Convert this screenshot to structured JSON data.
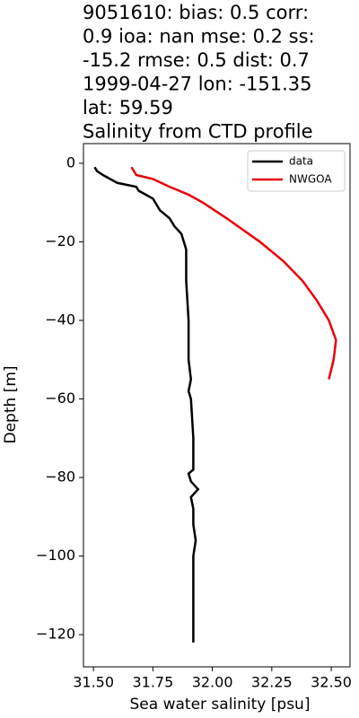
{
  "chart_data": {
    "type": "line",
    "title": [
      "9051610: bias: 0.5  corr:",
      "0.9  ioa: nan  mse: 0.2  ss:",
      "-15.2  rmse: 0.5  dist: 0.7",
      "1999-04-27 lon: -151.35",
      "lat: 59.59",
      "Salinity from CTD profile"
    ],
    "xlabel": "Sea water salinity [psu]",
    "ylabel": "Depth [m]",
    "xlim": [
      31.458,
      32.579
    ],
    "ylim": [
      -128.2,
      5
    ],
    "xticks": [
      {
        "value": 31.5,
        "label": "31.50"
      },
      {
        "value": 31.75,
        "label": "31.75"
      },
      {
        "value": 32.0,
        "label": "32.00"
      },
      {
        "value": 32.25,
        "label": "32.25"
      },
      {
        "value": 32.5,
        "label": "32.50"
      }
    ],
    "yticks": [
      0,
      {
        "value": -20,
        "label": "−20"
      },
      {
        "value": -40,
        "label": "−40"
      },
      {
        "value": -60,
        "label": "−60"
      },
      {
        "value": -80,
        "label": "−80"
      },
      {
        "value": -100,
        "label": "−100"
      },
      {
        "value": -120,
        "label": "−120"
      }
    ],
    "legend": "upper right",
    "series": [
      {
        "name": "data",
        "color": "#000000",
        "x": [
          31.505,
          31.515,
          31.54,
          31.6,
          31.68,
          31.69,
          31.72,
          31.75,
          31.76,
          31.78,
          31.82,
          31.84,
          31.87,
          31.88,
          31.89,
          31.89,
          31.89,
          31.9,
          31.9,
          31.91,
          31.9,
          31.91,
          31.92,
          31.92,
          31.9,
          31.91,
          31.94,
          31.91,
          31.92,
          31.92,
          31.93,
          31.92,
          31.92,
          31.92
        ],
        "values": [
          -1,
          -2,
          -3,
          -5,
          -6,
          -7,
          -8,
          -9,
          -10,
          -12,
          -14,
          -16,
          -18,
          -20,
          -22,
          -25,
          -30,
          -40,
          -50,
          -55,
          -58,
          -60,
          -70,
          -78,
          -79,
          -81,
          -83,
          -85,
          -88,
          -92,
          -96,
          -100,
          -110,
          -122
        ]
      },
      {
        "name": "NWGOA",
        "color": "#e8000b",
        "x": [
          31.66,
          31.67,
          31.68,
          31.75,
          31.82,
          31.9,
          31.96,
          32.06,
          32.2,
          32.3,
          32.38,
          32.44,
          32.49,
          32.52,
          32.51,
          32.49
        ],
        "values": [
          -1,
          -2,
          -3,
          -4,
          -6,
          -8,
          -10,
          -14,
          -20,
          -25,
          -30,
          -35,
          -40,
          -45,
          -50,
          -55
        ]
      }
    ]
  }
}
